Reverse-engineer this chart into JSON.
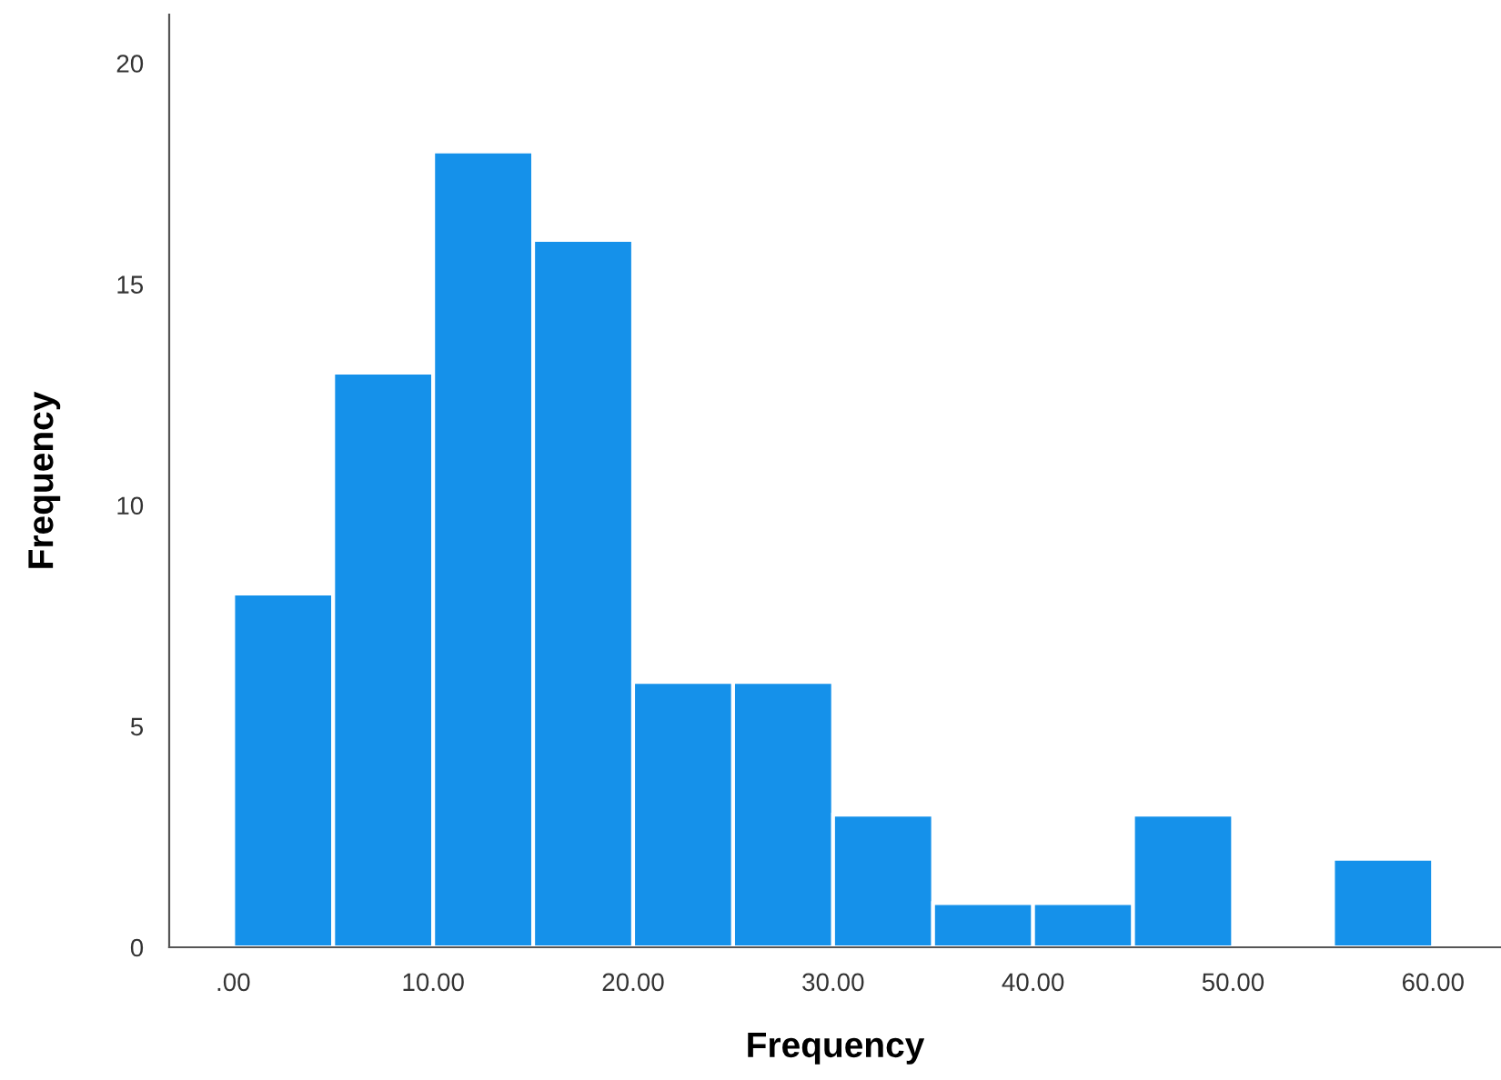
{
  "chart_data": {
    "type": "histogram",
    "xlabel": "Frequency",
    "ylabel": "Frequency",
    "bins": [
      0,
      5,
      10,
      15,
      20,
      25,
      30,
      35,
      40,
      45,
      50,
      55,
      60
    ],
    "values": [
      8,
      13,
      18,
      16,
      6,
      6,
      3,
      1,
      1,
      3,
      0,
      2
    ],
    "color": "#1591ea",
    "xlim": [
      -3.2,
      63.4
    ],
    "ylim": [
      0,
      21.1
    ],
    "xticks": [
      {
        "value": 0,
        "label": ".00"
      },
      {
        "value": 10,
        "label": "10.00"
      },
      {
        "value": 20,
        "label": "20.00"
      },
      {
        "value": 30,
        "label": "30.00"
      },
      {
        "value": 40,
        "label": "40.00"
      },
      {
        "value": 50,
        "label": "50.00"
      },
      {
        "value": 60,
        "label": "60.00"
      }
    ],
    "yticks": [
      0,
      5,
      10,
      15,
      20
    ],
    "grid": false
  }
}
